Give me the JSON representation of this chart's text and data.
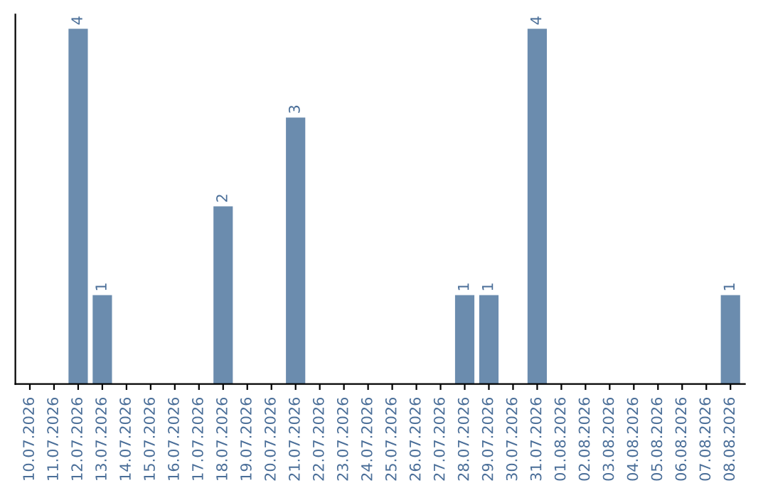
{
  "chart_data": {
    "type": "bar",
    "categories": [
      "10.07.2026",
      "11.07.2026",
      "12.07.2026",
      "13.07.2026",
      "14.07.2026",
      "15.07.2026",
      "16.07.2026",
      "17.07.2026",
      "18.07.2026",
      "19.07.2026",
      "20.07.2026",
      "21.07.2026",
      "22.07.2026",
      "23.07.2026",
      "24.07.2026",
      "25.07.2026",
      "26.07.2026",
      "27.07.2026",
      "28.07.2026",
      "29.07.2026",
      "30.07.2026",
      "31.07.2026",
      "01.08.2026",
      "02.08.2026",
      "03.08.2026",
      "04.08.2026",
      "05.08.2026",
      "06.08.2026",
      "07.08.2026",
      "08.08.2026"
    ],
    "values": [
      0,
      0,
      4,
      1,
      0,
      0,
      0,
      0,
      2,
      0,
      0,
      3,
      0,
      0,
      0,
      0,
      0,
      0,
      1,
      1,
      0,
      4,
      0,
      0,
      0,
      0,
      0,
      0,
      0,
      1
    ],
    "value_labels": [
      null,
      null,
      "4",
      "1",
      null,
      null,
      null,
      null,
      "2",
      null,
      null,
      "3",
      null,
      null,
      null,
      null,
      null,
      null,
      "1",
      "1",
      null,
      "4",
      null,
      null,
      null,
      null,
      null,
      null,
      null,
      "1"
    ],
    "color": "#6b8cae",
    "tick_labels": "x",
    "grid": false,
    "legend": false
  }
}
